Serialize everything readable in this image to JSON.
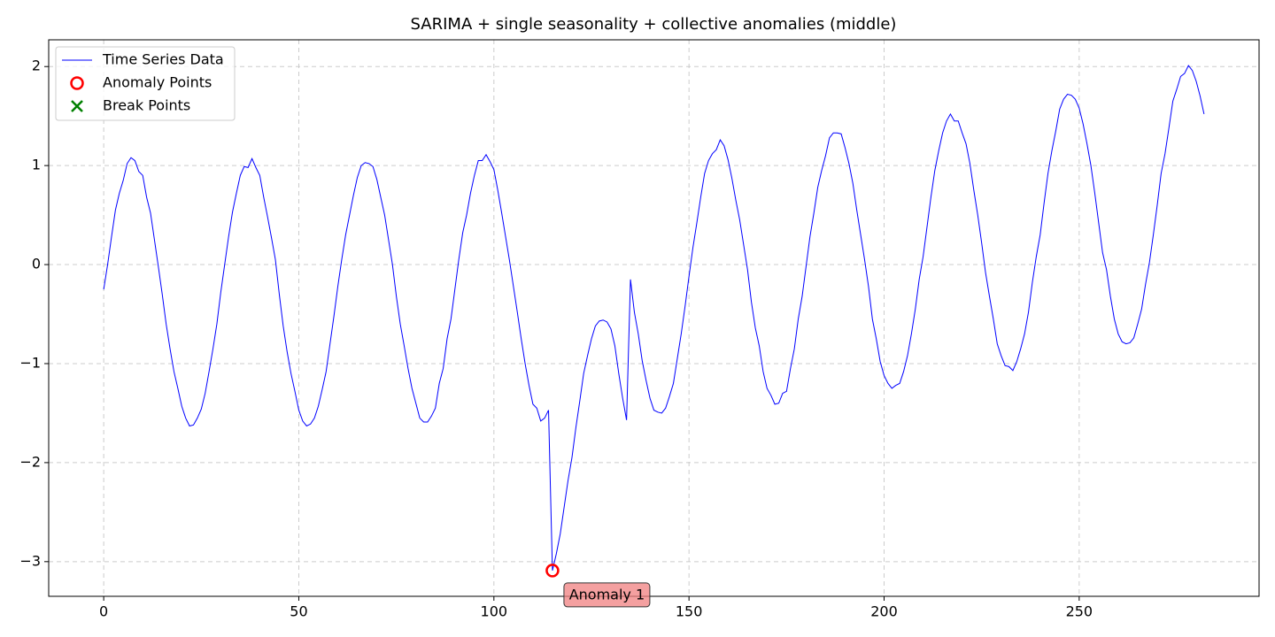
{
  "chart_data": {
    "type": "line",
    "title": "SARIMA + single seasonality + collective anomalies (middle)",
    "xlim": [
      -14.1,
      296.1
    ],
    "ylim": [
      -3.35,
      2.27
    ],
    "xticks": [
      0,
      50,
      100,
      150,
      200,
      250
    ],
    "yticks": [
      {
        "value": -3,
        "label": "−3"
      },
      {
        "value": -2,
        "label": "−2"
      },
      {
        "value": -1,
        "label": "−1"
      },
      0,
      1,
      2
    ],
    "grid": true,
    "legend": "upper left",
    "series": [
      {
        "name": "Time Series Data",
        "color": "#0000ff",
        "x": [
          0,
          1,
          2,
          3,
          4,
          5,
          6,
          7,
          8,
          9,
          10,
          11,
          12,
          13,
          14,
          15,
          16,
          17,
          18,
          19,
          20,
          21,
          22,
          23,
          24,
          25,
          26,
          27,
          28,
          29,
          30,
          31,
          32,
          33,
          34,
          35,
          36,
          37,
          38,
          39,
          40,
          41,
          42,
          43,
          44,
          45,
          46,
          47,
          48,
          49,
          50,
          51,
          52,
          53,
          54,
          55,
          56,
          57,
          58,
          59,
          60,
          61,
          62,
          63,
          64,
          65,
          66,
          67,
          68,
          69,
          70,
          71,
          72,
          73,
          74,
          75,
          76,
          77,
          78,
          79,
          80,
          81,
          82,
          83,
          84,
          85,
          86,
          87,
          88,
          89,
          90,
          91,
          92,
          93,
          94,
          95,
          96,
          97,
          98,
          99,
          100,
          101,
          102,
          103,
          104,
          105,
          106,
          107,
          108,
          109,
          110,
          111,
          112,
          113,
          114,
          115,
          116,
          117,
          118,
          119,
          120,
          121,
          122,
          123,
          124,
          125,
          126,
          127,
          128,
          129,
          130,
          131,
          132,
          133,
          134,
          135,
          136,
          137,
          138,
          139,
          140,
          141,
          142,
          143,
          144,
          145,
          146,
          147,
          148,
          149,
          150,
          151,
          152,
          153,
          154,
          155,
          156,
          157,
          158,
          159,
          160,
          161,
          162,
          163,
          164,
          165,
          166,
          167,
          168,
          169,
          170,
          171,
          172,
          173,
          174,
          175,
          176,
          177,
          178,
          179,
          180,
          181,
          182,
          183,
          184,
          185,
          186,
          187,
          188,
          189,
          190,
          191,
          192,
          193,
          194,
          195,
          196,
          197,
          198,
          199,
          200,
          201,
          202,
          203,
          204,
          205,
          206,
          207,
          208,
          209,
          210,
          211,
          212,
          213,
          214,
          215,
          216,
          217,
          218,
          219,
          220,
          221,
          222,
          223,
          224,
          225,
          226,
          227,
          228,
          229,
          230,
          231,
          232,
          233,
          234,
          235,
          236,
          237,
          238,
          239,
          240,
          241,
          242,
          243,
          244,
          245,
          246,
          247,
          248,
          249,
          250,
          251,
          252,
          253,
          254,
          255,
          256,
          257,
          258,
          259,
          260,
          261,
          262,
          263,
          264,
          265,
          266,
          267,
          268,
          269,
          270,
          271,
          272,
          273,
          274,
          275,
          276,
          277,
          278,
          279,
          280,
          281,
          282
        ],
        "values": [
          -0.25,
          0.0,
          0.28,
          0.55,
          0.72,
          0.85,
          1.02,
          1.08,
          1.05,
          0.94,
          0.9,
          0.68,
          0.52,
          0.25,
          -0.02,
          -0.3,
          -0.6,
          -0.85,
          -1.08,
          -1.25,
          -1.43,
          -1.55,
          -1.63,
          -1.62,
          -1.55,
          -1.46,
          -1.3,
          -1.08,
          -0.85,
          -0.6,
          -0.28,
          0.0,
          0.28,
          0.53,
          0.72,
          0.9,
          0.99,
          0.98,
          1.07,
          0.98,
          0.9,
          0.68,
          0.48,
          0.27,
          0.05,
          -0.3,
          -0.62,
          -0.88,
          -1.1,
          -1.28,
          -1.47,
          -1.58,
          -1.63,
          -1.61,
          -1.55,
          -1.43,
          -1.26,
          -1.08,
          -0.8,
          -0.52,
          -0.22,
          0.05,
          0.3,
          0.5,
          0.7,
          0.88,
          1.0,
          1.03,
          1.02,
          0.99,
          0.86,
          0.68,
          0.5,
          0.25,
          0.0,
          -0.32,
          -0.6,
          -0.82,
          -1.05,
          -1.25,
          -1.4,
          -1.55,
          -1.59,
          -1.59,
          -1.53,
          -1.45,
          -1.2,
          -1.05,
          -0.75,
          -0.55,
          -0.25,
          0.05,
          0.32,
          0.5,
          0.72,
          0.9,
          1.05,
          1.05,
          1.11,
          1.04,
          0.96,
          0.75,
          0.52,
          0.28,
          0.04,
          -0.22,
          -0.48,
          -0.75,
          -1.0,
          -1.22,
          -1.41,
          -1.45,
          -1.58,
          -1.55,
          -1.47,
          -3.09,
          -2.92,
          -2.72,
          -2.45,
          -2.18,
          -1.95,
          -1.65,
          -1.38,
          -1.1,
          -0.92,
          -0.75,
          -0.62,
          -0.57,
          -0.56,
          -0.58,
          -0.65,
          -0.82,
          -1.1,
          -1.35,
          -1.57,
          -0.15,
          -0.48,
          -0.7,
          -0.97,
          -1.17,
          -1.35,
          -1.47,
          -1.49,
          -1.5,
          -1.45,
          -1.33,
          -1.2,
          -0.95,
          -0.7,
          -0.42,
          -0.12,
          0.17,
          0.42,
          0.68,
          0.92,
          1.05,
          1.12,
          1.16,
          1.26,
          1.2,
          1.06,
          0.87,
          0.65,
          0.45,
          0.2,
          -0.05,
          -0.38,
          -0.64,
          -0.82,
          -1.08,
          -1.25,
          -1.32,
          -1.41,
          -1.4,
          -1.3,
          -1.28,
          -1.05,
          -0.85,
          -0.55,
          -0.32,
          -0.02,
          0.28,
          0.52,
          0.78,
          0.95,
          1.1,
          1.28,
          1.33,
          1.33,
          1.32,
          1.18,
          1.02,
          0.82,
          0.55,
          0.3,
          0.05,
          -0.22,
          -0.55,
          -0.75,
          -0.98,
          -1.12,
          -1.2,
          -1.25,
          -1.22,
          -1.2,
          -1.08,
          -0.92,
          -0.7,
          -0.45,
          -0.15,
          0.08,
          0.38,
          0.68,
          0.95,
          1.15,
          1.33,
          1.45,
          1.52,
          1.45,
          1.45,
          1.33,
          1.22,
          1.02,
          0.75,
          0.5,
          0.22,
          -0.08,
          -0.32,
          -0.55,
          -0.8,
          -0.92,
          -1.02,
          -1.03,
          -1.07,
          -0.98,
          -0.85,
          -0.7,
          -0.48,
          -0.18,
          0.08,
          0.3,
          0.62,
          0.92,
          1.15,
          1.35,
          1.57,
          1.67,
          1.72,
          1.71,
          1.67,
          1.58,
          1.42,
          1.22,
          1.0,
          0.72,
          0.42,
          0.12,
          -0.05,
          -0.32,
          -0.55,
          -0.7,
          -0.78,
          -0.8,
          -0.79,
          -0.74,
          -0.6,
          -0.45,
          -0.2,
          0.02,
          0.3,
          0.6,
          0.92,
          1.12,
          1.38,
          1.65,
          1.77,
          1.9,
          1.93,
          2.01,
          1.96,
          1.85,
          1.7,
          1.52
        ]
      },
      {
        "name": "Anomaly Points",
        "color": "#ff0000",
        "marker": "circle",
        "x": [
          115
        ],
        "values": [
          -3.09
        ],
        "annotations": [
          "Anomaly 1"
        ]
      },
      {
        "name": "Break Points",
        "color": "#008000",
        "marker": "x",
        "x": [],
        "values": []
      }
    ]
  }
}
